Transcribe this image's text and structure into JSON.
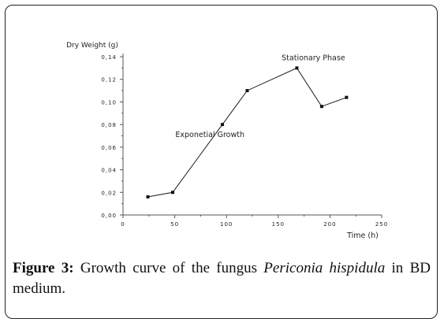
{
  "chart_data": {
    "type": "line",
    "title": "",
    "xlabel": "Time (h)",
    "ylabel": "Dry Weight (g)",
    "xlim": [
      0,
      250
    ],
    "ylim": [
      0.0,
      0.14
    ],
    "x_ticks": [
      "0",
      "50",
      "100",
      "150",
      "200",
      "250"
    ],
    "y_ticks": [
      "0,00",
      "0,02",
      "0,04",
      "0,06",
      "0,08",
      "0,10",
      "0,12",
      "0,14"
    ],
    "grid": false,
    "series": [
      {
        "x": [
          24,
          48,
          96,
          120,
          168,
          192,
          216
        ],
        "y": [
          0.016,
          0.02,
          0.08,
          0.11,
          0.13,
          0.096,
          0.104
        ]
      }
    ],
    "annotations": [
      {
        "text": "Exponetial Growth",
        "x": 84,
        "y": 0.069
      },
      {
        "text": "Stationary Phase",
        "x": 184,
        "y": 0.137
      }
    ]
  },
  "caption": {
    "label": "Figure 3:",
    "text_before": " Growth curve of the fungus ",
    "species": "Periconia hispidula",
    "text_after": " in BD medium."
  },
  "colors": {
    "line": "#1a1a1a",
    "marker": "#111111",
    "axis": "#555555",
    "text": "#222222"
  }
}
